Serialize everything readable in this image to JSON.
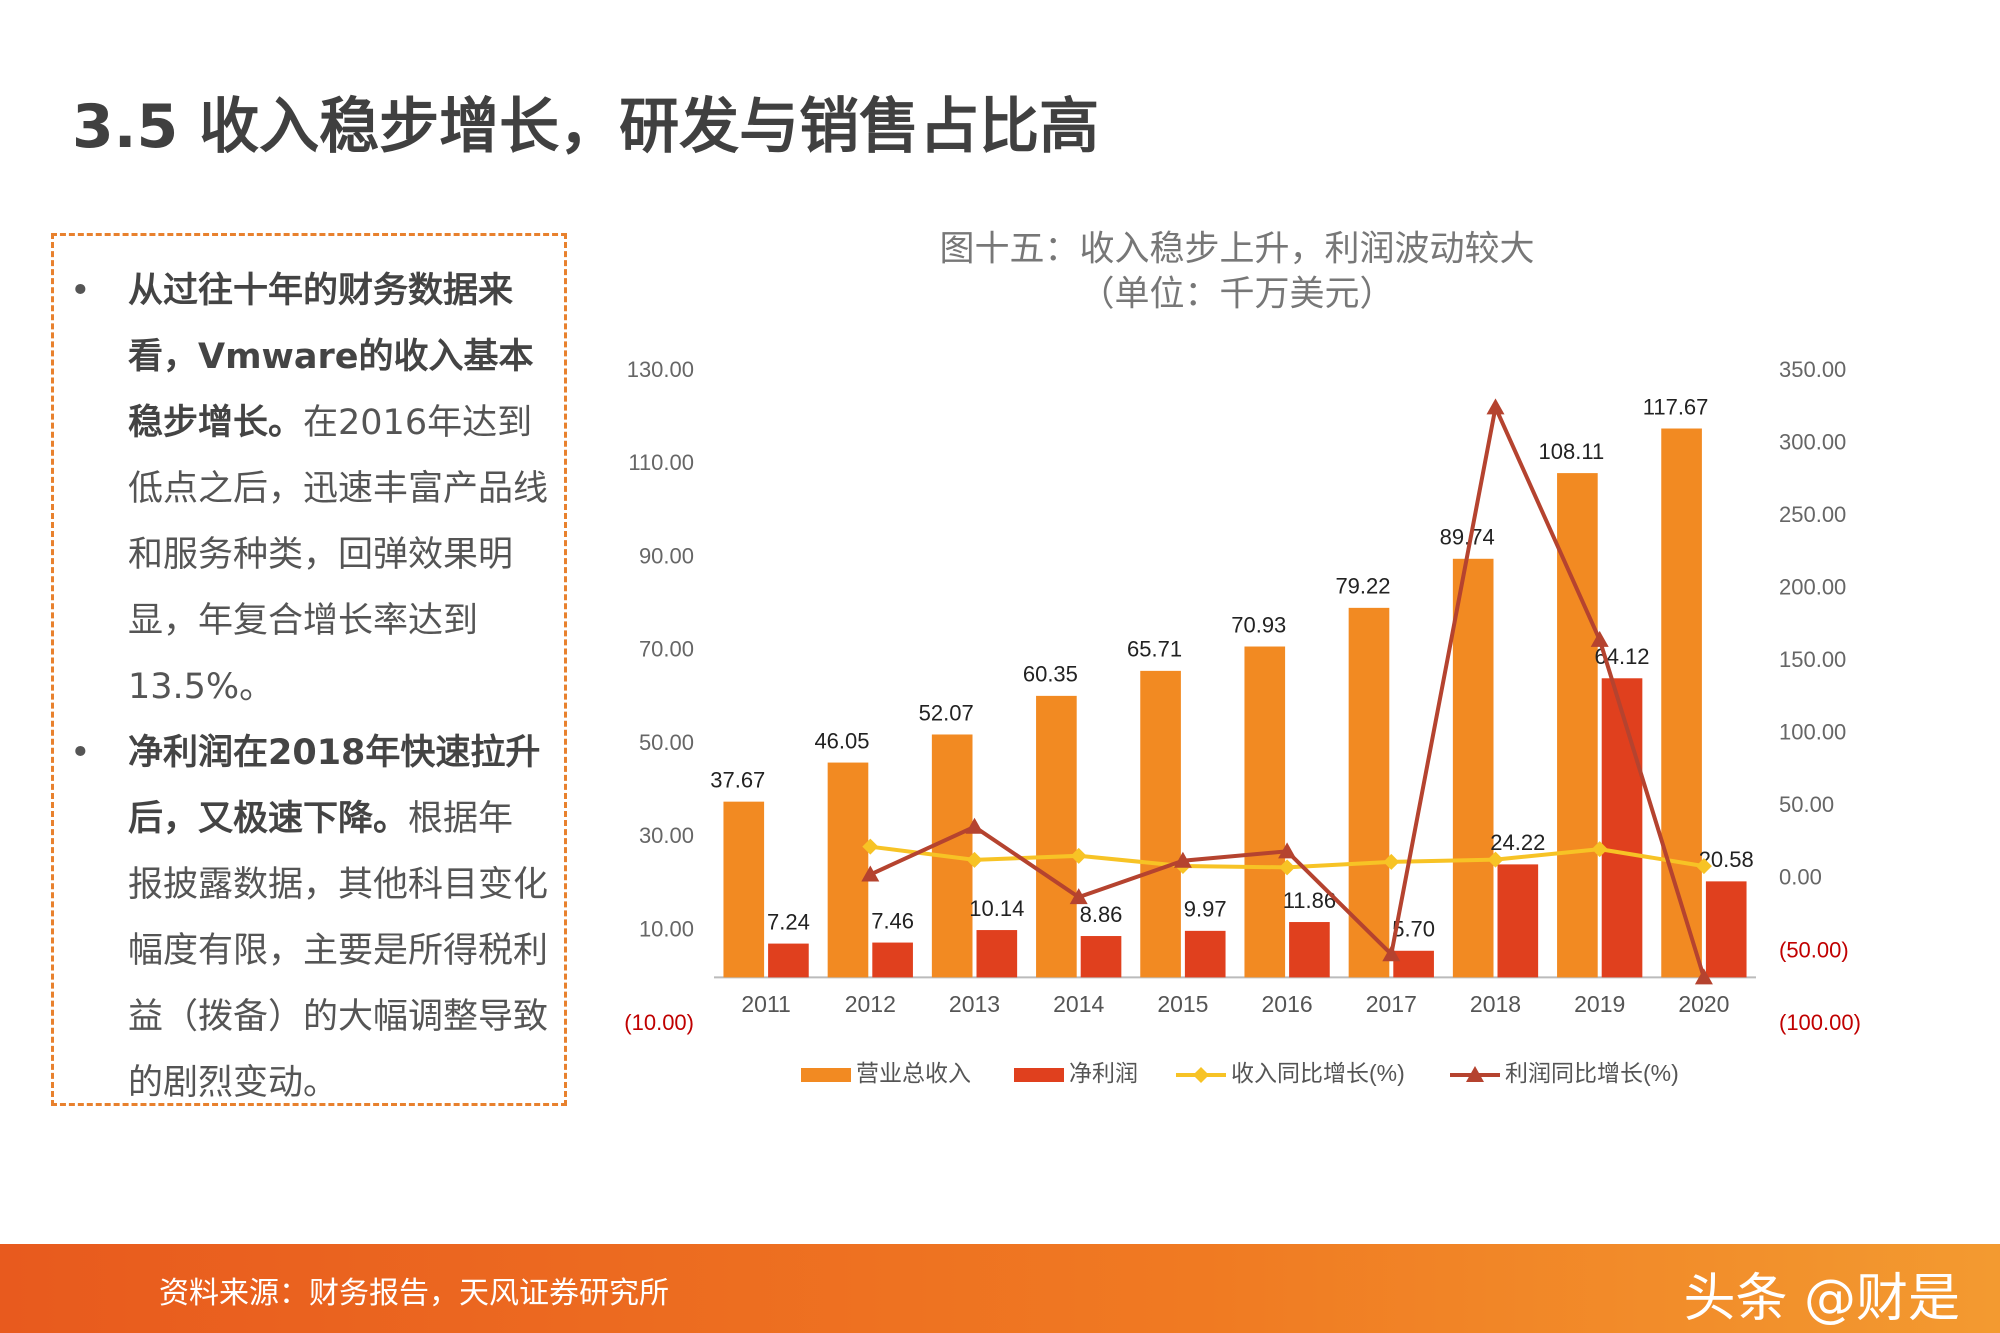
{
  "title": "3.5 收入稳步增长，研发与销售占比高",
  "bullets": [
    {
      "bold": "从过往十年的财务数据来看，Vmware的收入基本稳步增长。",
      "text": "在2016年达到低点之后，迅速丰富产品线和服务种类，回弹效果明显，年复合增长率达到13.5%。"
    },
    {
      "bold": "净利润在2018年快速拉升后，又极速下降。",
      "text": "根据年报披露数据，其他科目变化幅度有限，主要是所得税利益（拨备）的大幅调整导致的剧烈变动。"
    }
  ],
  "source": "资料来源：财务报告，天风证券研究所",
  "watermark": "头条 @财是",
  "chart_data": {
    "type": "bar",
    "title": "图十五：收入稳步上升，利润波动较大",
    "subtitle": "（单位：千万美元）",
    "categories": [
      "2011",
      "2012",
      "2013",
      "2014",
      "2015",
      "2016",
      "2017",
      "2018",
      "2019",
      "2020"
    ],
    "series": [
      {
        "name": "营业总收入",
        "type": "bar",
        "color": "#F28A22",
        "values": [
          37.67,
          46.05,
          52.07,
          60.35,
          65.71,
          70.93,
          79.22,
          89.74,
          108.11,
          117.67
        ],
        "value_labels": [
          "37.67",
          "46.05",
          "52.07",
          "60.35",
          "65.71",
          "70.93",
          "79.22",
          "89.74",
          "108.11",
          "117.67"
        ]
      },
      {
        "name": "净利润",
        "type": "bar",
        "color": "#E0401E",
        "values": [
          7.24,
          7.46,
          10.14,
          8.86,
          9.97,
          11.86,
          5.7,
          24.22,
          64.12,
          20.58
        ],
        "value_labels": [
          "7.24",
          "7.46",
          "10.14",
          "8.86",
          "9.97",
          "11.86",
          "5.70",
          "24.22",
          "64.12",
          "20.58"
        ]
      },
      {
        "name": "收入同比增长(%)",
        "type": "line",
        "marker": "diamond",
        "axis": "y2",
        "color": "#F7C325",
        "values": [
          null,
          22.2,
          13.1,
          15.9,
          8.9,
          7.9,
          11.7,
          13.3,
          20.5,
          8.8
        ]
      },
      {
        "name": "利润同比增长(%)",
        "type": "line",
        "marker": "triangle",
        "axis": "y2",
        "color": "#B5432F",
        "values": [
          null,
          3.0,
          35.9,
          -12.6,
          12.5,
          19.0,
          -51.9,
          324.9,
          164.7,
          -67.9
        ]
      }
    ],
    "ylim": [
      -10,
      130
    ],
    "yticks": [
      {
        "value": -10,
        "label": "(10.00)"
      },
      {
        "value": 10,
        "label": "10.00"
      },
      {
        "value": 30,
        "label": "30.00"
      },
      {
        "value": 50,
        "label": "50.00"
      },
      {
        "value": 70,
        "label": "70.00"
      },
      {
        "value": 90,
        "label": "90.00"
      },
      {
        "value": 110,
        "label": "110.00"
      },
      {
        "value": 130,
        "label": "130.00"
      }
    ],
    "y2lim": [
      -100,
      350
    ],
    "y2ticks": [
      {
        "value": -100,
        "label": "(100.00)"
      },
      {
        "value": -50,
        "label": "(50.00)"
      },
      {
        "value": 0,
        "label": "0.00"
      },
      {
        "value": 50,
        "label": "50.00"
      },
      {
        "value": 100,
        "label": "100.00"
      },
      {
        "value": 150,
        "label": "150.00"
      },
      {
        "value": 200,
        "label": "200.00"
      },
      {
        "value": 250,
        "label": "250.00"
      },
      {
        "value": 300,
        "label": "300.00"
      },
      {
        "value": 350,
        "label": "350.00"
      }
    ],
    "negative_tick_color": "#C00000",
    "legend": "bottom"
  }
}
